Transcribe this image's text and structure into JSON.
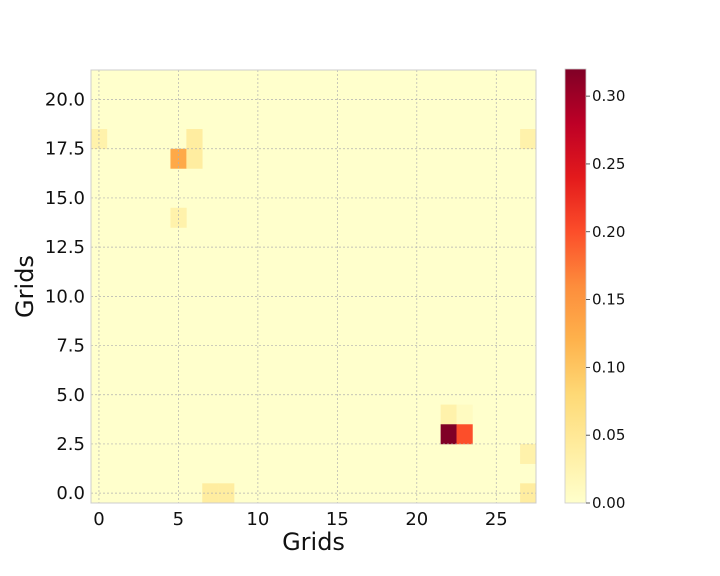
{
  "chart_data": {
    "type": "heatmap",
    "title": "",
    "xlabel": "Grids",
    "ylabel": "Grids",
    "grid": true,
    "x_cells": 28,
    "y_cells": 22,
    "xlim": [
      -0.5,
      27.5
    ],
    "ylim": [
      -0.5,
      21.5
    ],
    "xticks": [
      0,
      5,
      10,
      15,
      20,
      25
    ],
    "xtick_labels": [
      "0",
      "5",
      "10",
      "15",
      "20",
      "25"
    ],
    "yticks": [
      0,
      2.5,
      5,
      7.5,
      10,
      12.5,
      15,
      17.5,
      20
    ],
    "ytick_labels": [
      "0.0",
      "2.5",
      "5.0",
      "7.5",
      "10.0",
      "12.5",
      "15.0",
      "17.5",
      "20.0"
    ],
    "colorscale": "YlOrRd",
    "color_range": [
      0,
      0.32
    ],
    "colorbar_ticks": [
      0,
      0.05,
      0.1,
      0.15,
      0.2,
      0.25,
      0.3
    ],
    "colorbar_labels": [
      "0.00",
      "0.05",
      "0.10",
      "0.15",
      "0.20",
      "0.25",
      "0.30"
    ],
    "background_value": 0.0,
    "cells": [
      {
        "x": 0,
        "y": 18,
        "value": 0.03
      },
      {
        "x": 6,
        "y": 18,
        "value": 0.04
      },
      {
        "x": 27,
        "y": 18,
        "value": 0.03
      },
      {
        "x": 5,
        "y": 17,
        "value": 0.13
      },
      {
        "x": 6,
        "y": 17,
        "value": 0.04
      },
      {
        "x": 5,
        "y": 14,
        "value": 0.03
      },
      {
        "x": 22,
        "y": 4,
        "value": 0.03
      },
      {
        "x": 23,
        "y": 4,
        "value": 0.01
      },
      {
        "x": 22,
        "y": 3,
        "value": 0.32
      },
      {
        "x": 23,
        "y": 3,
        "value": 0.2
      },
      {
        "x": 27,
        "y": 2,
        "value": 0.03
      },
      {
        "x": 7,
        "y": 0,
        "value": 0.04
      },
      {
        "x": 8,
        "y": 0,
        "value": 0.04
      },
      {
        "x": 27,
        "y": 0,
        "value": 0.04
      }
    ]
  }
}
